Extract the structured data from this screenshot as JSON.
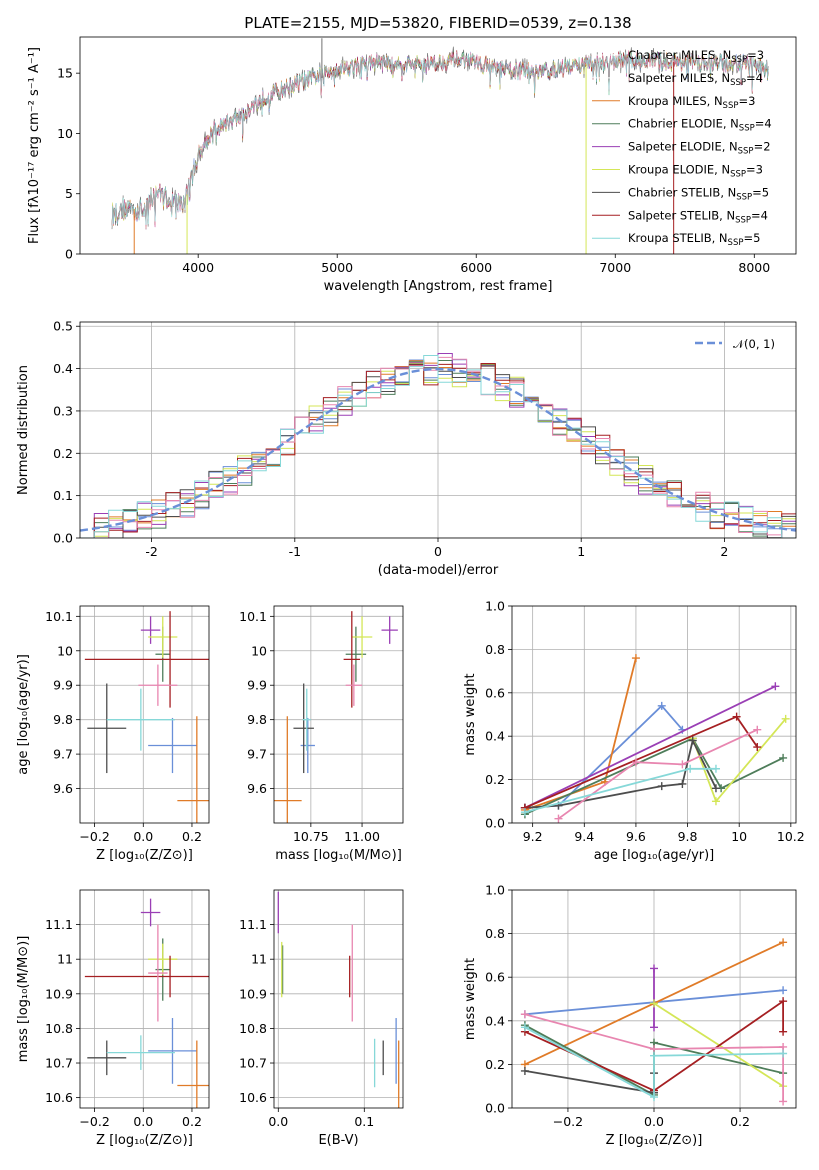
{
  "colors": [
    "#6a8fd8",
    "#e07b28",
    "#4e7d5a",
    "#9a3fb5",
    "#d4e657",
    "#4d4d4d",
    "#a51f22",
    "#e886b0",
    "#86d8d8"
  ],
  "chart_data": [
    {
      "id": "spectrum",
      "type": "line",
      "title": "PLATE=2155, MJD=53820, FIBERID=0539, z=0.138",
      "xlabel": "wavelength [Angstrom, rest frame]",
      "ylabel": "Flux [fλ10⁻¹⁷ erg cm⁻² s⁻¹ A⁻¹]",
      "xlim": [
        3150,
        8300
      ],
      "ylim": [
        0,
        18
      ],
      "xticks": [
        4000,
        5000,
        6000,
        7000,
        8000
      ],
      "yticks": [
        0,
        5,
        10,
        15
      ],
      "grid": false,
      "legend_position": "upper-right",
      "continuum": {
        "wavelength": [
          3380,
          3500,
          3600,
          3700,
          3800,
          3900,
          4000,
          4100,
          4300,
          4500,
          4800,
          5000,
          5300,
          5600,
          5900,
          6200,
          6500,
          6800,
          7100,
          7500,
          8000,
          8100
        ],
        "flux": [
          3.3,
          3.9,
          3.5,
          5.2,
          4.4,
          4.1,
          8.3,
          10.2,
          11.4,
          13.2,
          14.5,
          15.4,
          15.9,
          15.7,
          16.2,
          15.2,
          15.2,
          15.8,
          16.1,
          15.9,
          15.8,
          15.3
        ]
      },
      "series": [
        {
          "name": "Chabrier MILES, N_SSP=3",
          "label_main": "Chabrier MILES, N",
          "label_sub": "SSP",
          "label_tail": "=3"
        },
        {
          "name": "Salpeter MILES, N_SSP=4",
          "label_main": "Salpeter MILES, N",
          "label_sub": "SSP",
          "label_tail": "=4"
        },
        {
          "name": "Kroupa MILES, N_SSP=3",
          "label_main": "Kroupa MILES, N",
          "label_sub": "SSP",
          "label_tail": "=3"
        },
        {
          "name": "Chabrier ELODIE, N_SSP=4",
          "label_main": "Chabrier ELODIE, N",
          "label_sub": "SSP",
          "label_tail": "=4"
        },
        {
          "name": "Salpeter ELODIE, N_SSP=2",
          "label_main": "Salpeter ELODIE, N",
          "label_sub": "SSP",
          "label_tail": "=2"
        },
        {
          "name": "Kroupa ELODIE, N_SSP=3",
          "label_main": "Kroupa ELODIE, N",
          "label_sub": "SSP",
          "label_tail": "=3"
        },
        {
          "name": "Chabrier STELIB, N_SSP=5",
          "label_main": "Chabrier STELIB, N",
          "label_sub": "SSP",
          "label_tail": "=5"
        },
        {
          "name": "Salpeter STELIB, N_SSP=4",
          "label_main": "Salpeter STELIB, N",
          "label_sub": "SSP",
          "label_tail": "=4"
        },
        {
          "name": "Kroupa STELIB, N_SSP=5",
          "label_main": "Kroupa STELIB, N",
          "label_sub": "SSP",
          "label_tail": "=5"
        }
      ],
      "legend_colors": [
        "#ffffff",
        "#ffffff",
        "#e07b28",
        "#4e7d5a",
        "#9a3fb5",
        "#d4e657",
        "#4d4d4d",
        "#a51f22",
        "#86d8d8"
      ],
      "drop_lines": [
        {
          "x": 3540,
          "color": "#e07b28"
        },
        {
          "x": 3920,
          "color": "#d4e657"
        },
        {
          "x": 6790,
          "color": "#d4e657"
        },
        {
          "x": 7420,
          "color": "#a51f22"
        }
      ]
    },
    {
      "id": "residuals",
      "type": "histogram",
      "xlabel": "(data-model)/error",
      "ylabel": "Normed distribution",
      "xlim": [
        -2.5,
        2.5
      ],
      "ylim": [
        0,
        0.51
      ],
      "xticks": [
        -2,
        -1,
        0,
        1,
        2
      ],
      "yticks": [
        0.0,
        0.1,
        0.2,
        0.3,
        0.4,
        0.5
      ],
      "grid": true,
      "bin_width": 0.1,
      "legend_position": "upper-right",
      "reference_curve": {
        "label": "𝒩(0, 1)",
        "mean": 0,
        "sigma": 1,
        "color": "#6a8fd8",
        "style": "dashed"
      }
    },
    {
      "id": "age-vs-Z",
      "type": "errorbar",
      "xlabel": "Z [log₁₀(Z/Z⊙)]",
      "ylabel": "age  [log₁₀(age/yr)]",
      "xlim": [
        -0.26,
        0.27
      ],
      "ylim": [
        9.5,
        10.13
      ],
      "xticks": [
        -0.2,
        0.0,
        0.2
      ],
      "xtick_labels": [
        "−0.2",
        "0.0",
        "0.2"
      ],
      "yticks": [
        9.6,
        9.7,
        9.8,
        9.9,
        10.0,
        10.1
      ],
      "grid": true,
      "points": [
        {
          "x": 0.12,
          "y": 9.725,
          "xerr": 0.1,
          "yerr": 0.08,
          "color": "#6a8fd8"
        },
        {
          "x": 0.22,
          "y": 9.565,
          "xerr": 0.08,
          "yerr": 0.245,
          "color": "#e07b28"
        },
        {
          "x": 0.08,
          "y": 9.99,
          "xerr": 0.03,
          "yerr": 0.08,
          "color": "#4e7d5a"
        },
        {
          "x": 0.03,
          "y": 10.06,
          "xerr": 0.04,
          "yerr": 0.04,
          "color": "#9a3fb5"
        },
        {
          "x": 0.08,
          "y": 10.04,
          "xerr": 0.06,
          "yerr": 0.06,
          "color": "#d4e657"
        },
        {
          "x": -0.15,
          "y": 9.775,
          "xerr": 0.08,
          "yerr": 0.13,
          "color": "#4d4d4d"
        },
        {
          "x": 0.11,
          "y": 9.975,
          "xerr": 0.35,
          "yerr": 0.14,
          "color": "#a51f22"
        },
        {
          "x": 0.06,
          "y": 9.9,
          "xerr": 0.08,
          "yerr": 0.06,
          "color": "#e886b0"
        },
        {
          "x": -0.01,
          "y": 9.8,
          "xerr": 0.14,
          "yerr": 0.09,
          "color": "#86d8d8"
        }
      ]
    },
    {
      "id": "age-vs-mass",
      "type": "errorbar",
      "xlabel": "mass [log₁₀(M/M⊙)]",
      "ylabel": "",
      "xlim": [
        10.57,
        11.2
      ],
      "ylim": [
        9.5,
        10.13
      ],
      "xticks": [
        10.75,
        11.0
      ],
      "xtick_labels": [
        "10.75",
        "11.00"
      ],
      "yticks": [
        9.6,
        9.7,
        9.8,
        9.9,
        10.0,
        10.1
      ],
      "grid": true,
      "points": [
        {
          "x": 10.735,
          "y": 9.725,
          "xerr": 0.035,
          "yerr": 0.08,
          "color": "#6a8fd8"
        },
        {
          "x": 10.635,
          "y": 9.565,
          "xerr": 0.07,
          "yerr": 0.245,
          "color": "#e07b28"
        },
        {
          "x": 10.97,
          "y": 9.99,
          "xerr": 0.05,
          "yerr": 0.08,
          "color": "#4e7d5a"
        },
        {
          "x": 11.135,
          "y": 10.06,
          "xerr": 0.04,
          "yerr": 0.04,
          "color": "#9a3fb5"
        },
        {
          "x": 11.0,
          "y": 10.04,
          "xerr": 0.05,
          "yerr": 0.06,
          "color": "#d4e657"
        },
        {
          "x": 10.715,
          "y": 9.775,
          "xerr": 0.05,
          "yerr": 0.13,
          "color": "#4d4d4d"
        },
        {
          "x": 10.95,
          "y": 9.975,
          "xerr": 0.04,
          "yerr": 0.14,
          "color": "#a51f22"
        },
        {
          "x": 10.96,
          "y": 9.9,
          "xerr": 0.04,
          "yerr": 0.06,
          "color": "#e886b0"
        },
        {
          "x": 10.73,
          "y": 9.8,
          "xerr": 0.02,
          "yerr": 0.09,
          "color": "#86d8d8"
        }
      ]
    },
    {
      "id": "weight-vs-age",
      "type": "line",
      "xlabel": "age  [log₁₀(age/yr)]",
      "ylabel": "mass weight",
      "xlim": [
        9.12,
        10.22
      ],
      "ylim": [
        0.0,
        1.0
      ],
      "xticks": [
        9.2,
        9.4,
        9.6,
        9.8,
        10.0,
        10.2
      ],
      "yticks": [
        0.0,
        0.2,
        0.4,
        0.6,
        0.8,
        1.0
      ],
      "grid": true,
      "series": [
        {
          "color": "#6a8fd8",
          "x": [
            9.17,
            9.3,
            9.7,
            9.78
          ],
          "y": [
            0.07,
            0.08,
            0.54,
            0.43
          ]
        },
        {
          "color": "#e07b28",
          "x": [
            9.17,
            9.48,
            9.6
          ],
          "y": [
            0.06,
            0.19,
            0.76
          ]
        },
        {
          "color": "#4e7d5a",
          "x": [
            9.17,
            9.82,
            9.93,
            10.17
          ],
          "y": [
            0.04,
            0.39,
            0.16,
            0.3
          ]
        },
        {
          "color": "#9a3fb5",
          "x": [
            9.17,
            10.14
          ],
          "y": [
            0.07,
            0.63
          ]
        },
        {
          "color": "#d4e657",
          "x": [
            9.82,
            9.91,
            10.18
          ],
          "y": [
            0.39,
            0.1,
            0.48
          ]
        },
        {
          "color": "#4d4d4d",
          "x": [
            9.17,
            9.3,
            9.7,
            9.78,
            9.82,
            9.91
          ],
          "y": [
            0.07,
            0.08,
            0.17,
            0.18,
            0.38,
            0.16
          ]
        },
        {
          "color": "#a51f22",
          "x": [
            9.17,
            9.99,
            10.07
          ],
          "y": [
            0.07,
            0.49,
            0.35
          ]
        },
        {
          "color": "#e886b0",
          "x": [
            9.3,
            9.6,
            9.78,
            10.07
          ],
          "y": [
            0.02,
            0.28,
            0.27,
            0.43
          ]
        },
        {
          "color": "#86d8d8",
          "x": [
            9.17,
            9.81,
            9.91
          ],
          "y": [
            0.05,
            0.25,
            0.25
          ]
        }
      ]
    },
    {
      "id": "mass-vs-Z",
      "type": "errorbar",
      "xlabel": "Z [log₁₀(Z/Z⊙)]",
      "ylabel": "mass [log₁₀(M/M⊙)]",
      "xlim": [
        -0.26,
        0.27
      ],
      "ylim": [
        10.57,
        11.2
      ],
      "xticks": [
        -0.2,
        0.0,
        0.2
      ],
      "xtick_labels": [
        "−0.2",
        "0.0",
        "0.2"
      ],
      "yticks": [
        10.6,
        10.7,
        10.8,
        10.9,
        11.0,
        11.1
      ],
      "grid": true,
      "points": [
        {
          "x": 0.12,
          "y": 10.735,
          "xerr": 0.1,
          "yerr": 0.095,
          "color": "#6a8fd8"
        },
        {
          "x": 0.22,
          "y": 10.635,
          "xerr": 0.08,
          "yerr": 0.13,
          "color": "#e07b28"
        },
        {
          "x": 0.08,
          "y": 10.97,
          "xerr": 0.03,
          "yerr": 0.09,
          "color": "#4e7d5a"
        },
        {
          "x": 0.03,
          "y": 11.135,
          "xerr": 0.04,
          "yerr": 0.04,
          "color": "#9a3fb5"
        },
        {
          "x": 0.08,
          "y": 11.0,
          "xerr": 0.06,
          "yerr": 0.045,
          "color": "#d4e657"
        },
        {
          "x": -0.15,
          "y": 10.715,
          "xerr": 0.08,
          "yerr": 0.05,
          "color": "#4d4d4d"
        },
        {
          "x": 0.11,
          "y": 10.95,
          "xerr": 0.35,
          "yerr": 0.06,
          "color": "#a51f22"
        },
        {
          "x": 0.06,
          "y": 10.96,
          "xerr": 0.04,
          "yerr": 0.14,
          "color": "#e886b0"
        },
        {
          "x": -0.01,
          "y": 10.73,
          "xerr": 0.14,
          "yerr": 0.05,
          "color": "#86d8d8"
        }
      ]
    },
    {
      "id": "mass-vs-EBV",
      "type": "errorbar",
      "xlabel": "E(B-V)",
      "ylabel": "",
      "xlim": [
        -0.005,
        0.145
      ],
      "ylim": [
        10.57,
        11.2
      ],
      "xticks": [
        0.0,
        0.1
      ],
      "xtick_labels": [
        "0.0",
        "0.1"
      ],
      "yticks": [
        10.6,
        10.7,
        10.8,
        10.9,
        11.0,
        11.1
      ],
      "grid": true,
      "points": [
        {
          "x": 0.137,
          "y": 10.735,
          "xerr": 0.0,
          "yerr": 0.095,
          "color": "#6a8fd8"
        },
        {
          "x": 0.14,
          "y": 10.635,
          "xerr": 0.0,
          "yerr": 0.13,
          "color": "#e07b28"
        },
        {
          "x": 0.005,
          "y": 10.97,
          "xerr": 0.0,
          "yerr": 0.07,
          "color": "#4e7d5a"
        },
        {
          "x": 0.0,
          "y": 11.135,
          "xerr": 0.0,
          "yerr": 0.06,
          "color": "#9a3fb5"
        },
        {
          "x": 0.004,
          "y": 10.97,
          "xerr": 0.0,
          "yerr": 0.08,
          "color": "#d4e657"
        },
        {
          "x": 0.122,
          "y": 10.715,
          "xerr": 0.0,
          "yerr": 0.05,
          "color": "#4d4d4d"
        },
        {
          "x": 0.083,
          "y": 10.95,
          "xerr": 0.0,
          "yerr": 0.06,
          "color": "#a51f22"
        },
        {
          "x": 0.086,
          "y": 10.96,
          "xerr": 0.0,
          "yerr": 0.14,
          "color": "#e886b0"
        },
        {
          "x": 0.112,
          "y": 10.7,
          "xerr": 0.0,
          "yerr": 0.07,
          "color": "#86d8d8"
        }
      ]
    },
    {
      "id": "weight-vs-Z",
      "type": "line",
      "xlabel": "Z [log₁₀(Z/Z⊙)]",
      "ylabel": "mass weight",
      "xlim": [
        -0.33,
        0.33
      ],
      "ylim": [
        0.0,
        1.0
      ],
      "xticks": [
        -0.2,
        0.0,
        0.2
      ],
      "xtick_labels": [
        "−0.2",
        "0.0",
        "0.2"
      ],
      "yticks": [
        0.0,
        0.2,
        0.4,
        0.6,
        0.8,
        1.0
      ],
      "grid": true,
      "series": [
        {
          "color": "#6a8fd8",
          "x": [
            -0.3,
            0.3
          ],
          "y": [
            0.43,
            0.54
          ]
        },
        {
          "color": "#e07b28",
          "x": [
            -0.3,
            0.3
          ],
          "y": [
            0.2,
            0.76
          ]
        },
        {
          "color": "#4e7d5a",
          "x": [
            -0.3,
            0.0,
            0.0,
            0.3
          ],
          "y": [
            0.38,
            0.06,
            0.3,
            0.16
          ]
        },
        {
          "color": "#9a3fb5",
          "x": [
            0.0,
            0.0
          ],
          "y": [
            0.37,
            0.64
          ]
        },
        {
          "color": "#d4e657",
          "x": [
            0.0,
            0.3
          ],
          "y": [
            0.48,
            0.1
          ]
        },
        {
          "color": "#4d4d4d",
          "x": [
            -0.3,
            0.0,
            0.0
          ],
          "y": [
            0.17,
            0.07,
            0.16
          ]
        },
        {
          "color": "#a51f22",
          "x": [
            -0.3,
            0.0,
            0.3,
            0.3
          ],
          "y": [
            0.35,
            0.08,
            0.49,
            0.35
          ]
        },
        {
          "color": "#e886b0",
          "x": [
            -0.3,
            0.0,
            0.3,
            0.3
          ],
          "y": [
            0.43,
            0.27,
            0.28,
            0.03
          ]
        },
        {
          "color": "#86d8d8",
          "x": [
            -0.3,
            0.0,
            0.0,
            0.3
          ],
          "y": [
            0.37,
            0.05,
            0.24,
            0.25
          ]
        }
      ]
    }
  ]
}
